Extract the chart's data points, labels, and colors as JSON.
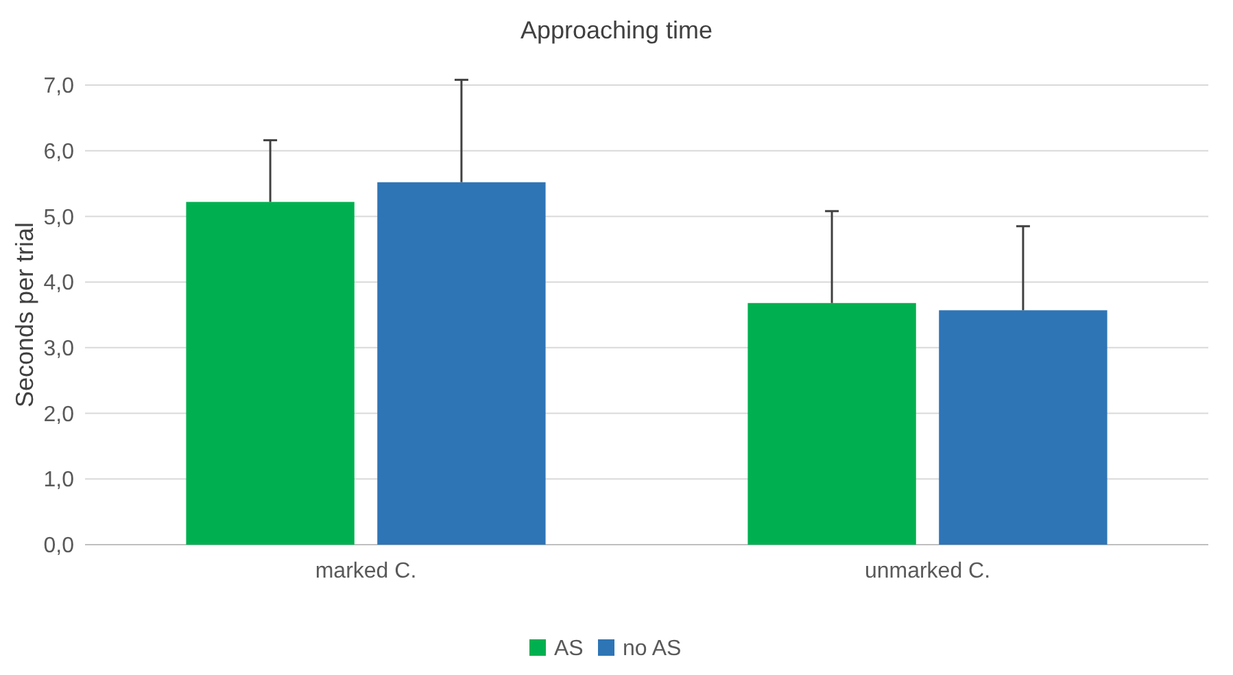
{
  "chart_data": {
    "type": "bar",
    "title": "Approaching time",
    "ylabel": "Seconds per trial",
    "categories": [
      "marked C.",
      "unmarked C."
    ],
    "series": [
      {
        "name": "AS",
        "color": "#00b050",
        "values": [
          5.22,
          3.68
        ],
        "errors": [
          [
            5.22,
            6.16
          ],
          [
            3.68,
            5.08
          ]
        ]
      },
      {
        "name": "no AS",
        "color": "#2e75b6",
        "values": [
          5.52,
          3.57
        ],
        "errors": [
          [
            5.52,
            7.08
          ],
          [
            3.57,
            4.85
          ]
        ]
      }
    ],
    "ylim": [
      0,
      7
    ],
    "yticks": [
      {
        "value": 0,
        "label": "0,0"
      },
      {
        "value": 1,
        "label": "1,0"
      },
      {
        "value": 2,
        "label": "2,0"
      },
      {
        "value": 3,
        "label": "3,0"
      },
      {
        "value": 4,
        "label": "4,0"
      },
      {
        "value": 5,
        "label": "5,0"
      },
      {
        "value": 6,
        "label": "6,0"
      },
      {
        "value": 7,
        "label": "7,0"
      }
    ],
    "grid": "y",
    "legend": "bottom"
  }
}
